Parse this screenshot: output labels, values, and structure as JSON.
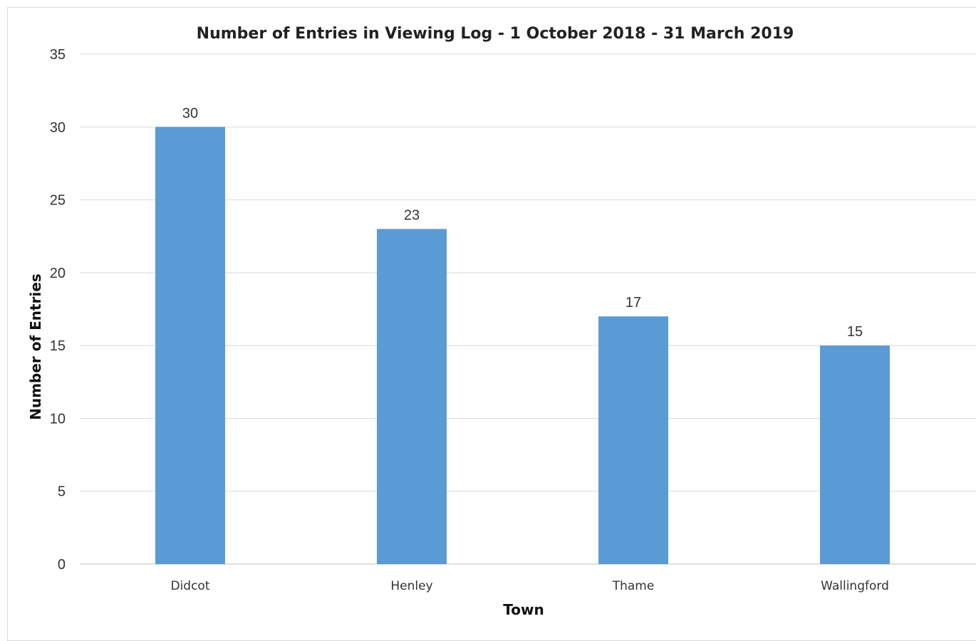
{
  "chart_data": {
    "type": "bar",
    "title": "Number of Entries in Viewing Log - 1 October 2018 - 31 March 2019",
    "xlabel": "Town",
    "ylabel": "Number of Entries",
    "categories": [
      "Didcot",
      "Henley",
      "Thame",
      "Wallingford"
    ],
    "values": [
      30,
      23,
      17,
      15
    ],
    "ylim": [
      0,
      35
    ],
    "yticks": [
      0,
      5,
      10,
      15,
      20,
      25,
      30,
      35
    ],
    "grid": true,
    "legend": "none",
    "data_labels": true,
    "bar_color": "#5b9bd5"
  }
}
